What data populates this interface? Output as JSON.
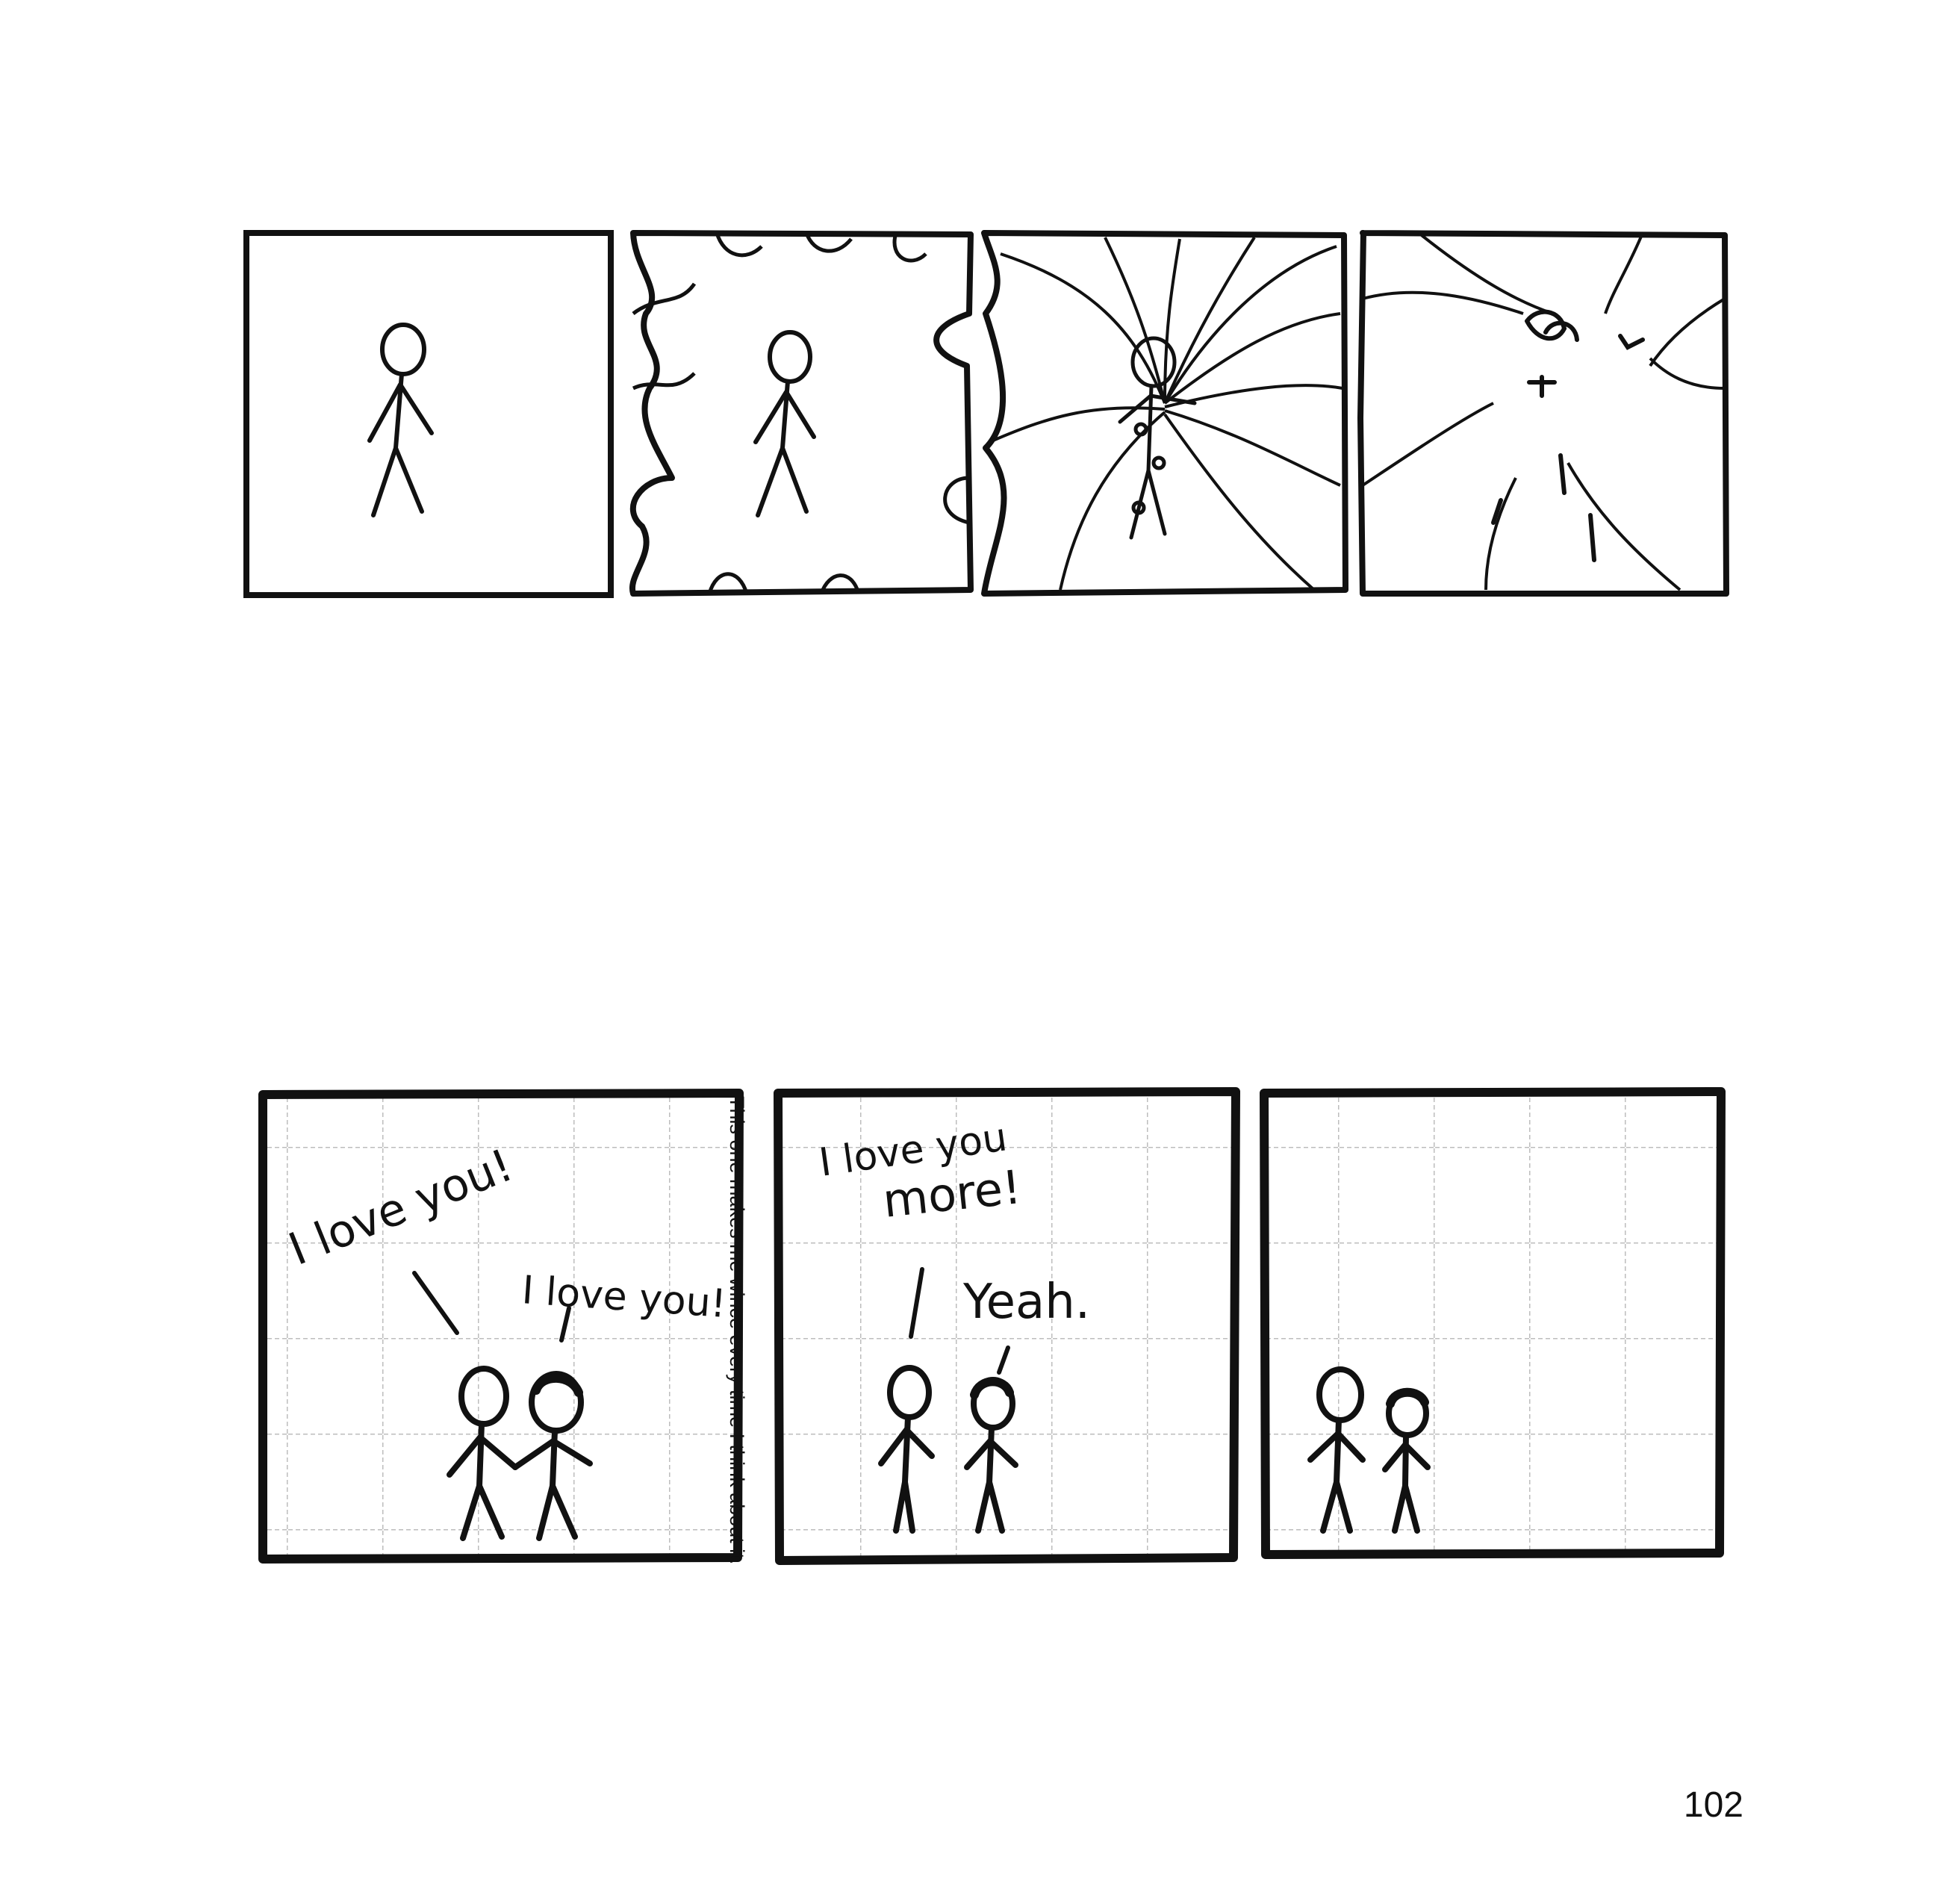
{
  "strip_bottom": {
    "panel1": {
      "speech_left": "I love you!",
      "speech_right": "I love you!"
    },
    "panel2": {
      "speech_left_line1": "I love you",
      "speech_left_line2": "more!",
      "speech_right": "Yeah."
    },
    "side_note": "This one makes me wince every time I think about it."
  },
  "page_number": "102",
  "colors": {
    "ink": "#111111",
    "grid": "#bdbdbd",
    "paper": "#ffffff"
  }
}
